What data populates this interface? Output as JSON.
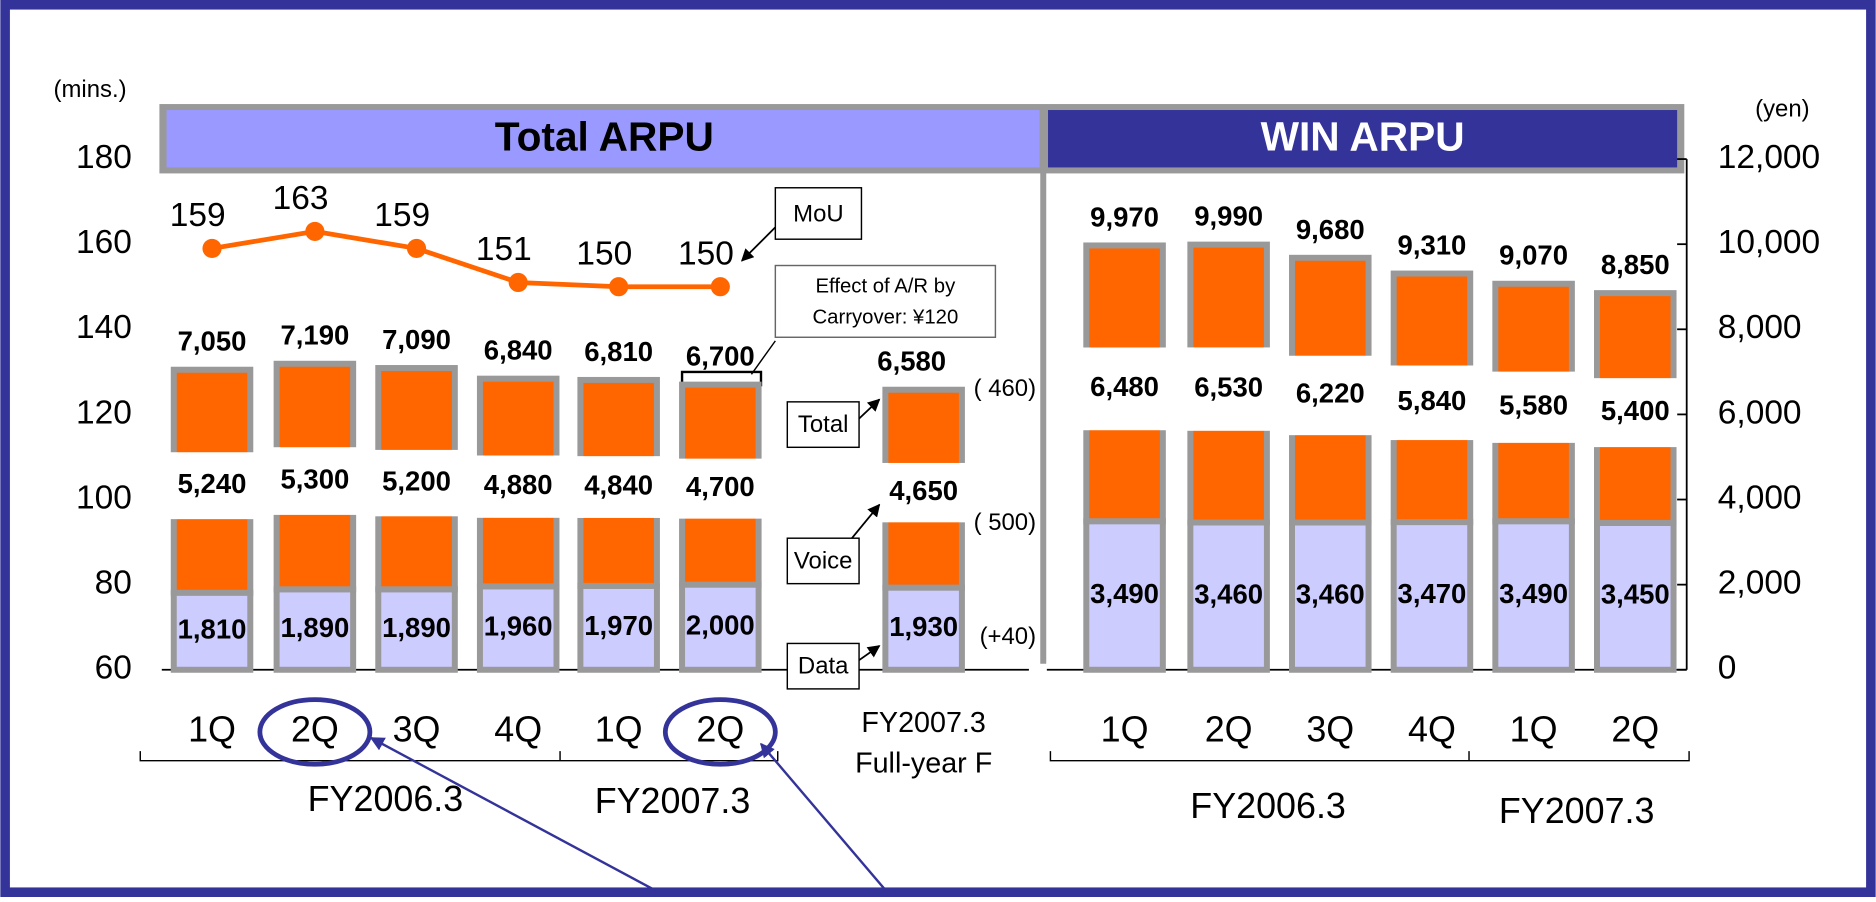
{
  "chart_data": [
    {
      "type": "bar",
      "title": "Total ARPU",
      "title_color": "#9999ff",
      "categories": [
        "1Q",
        "2Q",
        "3Q",
        "4Q",
        "1Q",
        "2Q",
        "FY2007.3 Full-year F"
      ],
      "groups": [
        "FY2006.3",
        "FY2007.3"
      ],
      "ylabel": "(mins.)",
      "y2label": "(yen)",
      "ylim": [
        60,
        180
      ],
      "yticks": [
        60,
        80,
        100,
        120,
        140,
        160,
        180
      ],
      "y2lim": [
        0,
        12000
      ],
      "y2ticks": [
        0,
        {
          "value": 2000,
          "label": "2,000"
        },
        {
          "value": 4000,
          "label": "4,000"
        },
        {
          "value": 6000,
          "label": "6,000"
        },
        {
          "value": 8000,
          "label": "8,000"
        },
        {
          "value": 10000,
          "label": "10,000"
        },
        {
          "value": 12000,
          "label": "12,000"
        }
      ],
      "series": [
        {
          "name": "Data",
          "color": "#ccccff",
          "axis": "y2",
          "values": [
            1810,
            1890,
            1890,
            1960,
            1970,
            2000,
            1930
          ],
          "value_labels": [
            "1,810",
            "1,890",
            "1,890",
            "1,960",
            "1,970",
            "2,000",
            "1,930"
          ]
        },
        {
          "name": "Voice",
          "color": "#ff6600",
          "axis": "y2",
          "values": [
            5240,
            5300,
            5200,
            4880,
            4840,
            4700,
            4650
          ],
          "value_labels": [
            "5,240",
            "5,300",
            "5,200",
            "4,880",
            "4,840",
            "4,700",
            "4,650"
          ]
        },
        {
          "name": "MoU",
          "type": "line",
          "color": "#ff6600",
          "axis": "y",
          "values": [
            159,
            163,
            159,
            151,
            150,
            150,
            null
          ]
        }
      ],
      "totals": {
        "name": "Total",
        "values": [
          7050,
          7190,
          7090,
          6840,
          6810,
          6700,
          6580
        ],
        "value_labels": [
          "7,050",
          "7,190",
          "7,090",
          "6,840",
          "6,810",
          "6,700",
          "6,580"
        ]
      },
      "annotations": [
        "Effect of A/R by",
        "Carryover:   ¥120",
        "(  460)",
        "(  500)",
        "(+40)"
      ]
    },
    {
      "type": "bar",
      "title": "WIN ARPU",
      "title_color": "#333399",
      "categories": [
        "1Q",
        "2Q",
        "3Q",
        "4Q",
        "1Q",
        "2Q"
      ],
      "groups": [
        "FY2006.3",
        "FY2007.3"
      ],
      "series": [
        {
          "name": "Data",
          "color": "#ccccff",
          "axis": "y2",
          "values": [
            3490,
            3460,
            3460,
            3470,
            3490,
            3450
          ],
          "value_labels": [
            "3,490",
            "3,460",
            "3,460",
            "3,470",
            "3,490",
            "3,450"
          ]
        },
        {
          "name": "Voice",
          "color": "#ff6600",
          "axis": "y2",
          "values": [
            6480,
            6530,
            6220,
            5840,
            5580,
            5400
          ],
          "value_labels": [
            "6,480",
            "6,530",
            "6,220",
            "5,840",
            "5,580",
            "5,400"
          ]
        }
      ],
      "totals": {
        "values": [
          9970,
          9990,
          9680,
          9310,
          9070,
          8850
        ],
        "value_labels": [
          "9,970",
          "9,990",
          "9,680",
          "9,310",
          "9,070",
          "8,850"
        ]
      }
    }
  ]
}
